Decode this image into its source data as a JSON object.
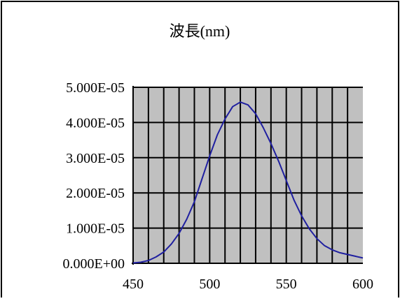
{
  "chart_data": {
    "type": "line",
    "title": "波長(nm)",
    "xlabel": "",
    "ylabel": "",
    "xlim": [
      450,
      600
    ],
    "ylim": [
      0,
      5e-05
    ],
    "x_ticks": [
      "450",
      "500",
      "550",
      "600"
    ],
    "y_ticks": [
      "0.000E+00",
      "1.000E-05",
      "2.000E-05",
      "3.000E-05",
      "4.000E-05",
      "5.000E-05"
    ],
    "grid": true,
    "legend": "none",
    "colors": {
      "line": "#1f1fa0",
      "plot_background": "#c0c0c0",
      "grid": "#000000"
    },
    "series": [
      {
        "x": [
          450,
          455,
          460,
          465,
          470,
          475,
          480,
          485,
          490,
          495,
          500,
          505,
          510,
          515,
          520,
          525,
          530,
          535,
          540,
          545,
          550,
          555,
          560,
          565,
          570,
          575,
          580,
          585,
          590,
          595,
          600
        ],
        "y": [
          1e-07,
          3e-07,
          8e-07,
          1.8e-06,
          3.2e-06,
          5.5e-06,
          8.5e-06,
          1.25e-05,
          1.75e-05,
          2.4e-05,
          3.05e-05,
          3.65e-05,
          4.1e-05,
          4.45e-05,
          4.58e-05,
          4.5e-05,
          4.25e-05,
          3.85e-05,
          3.4e-05,
          2.9e-05,
          2.35e-05,
          1.8e-05,
          1.35e-05,
          9.8e-06,
          7e-06,
          5e-06,
          3.8e-06,
          3e-06,
          2.5e-06,
          2e-06,
          1.5e-06
        ]
      }
    ]
  }
}
